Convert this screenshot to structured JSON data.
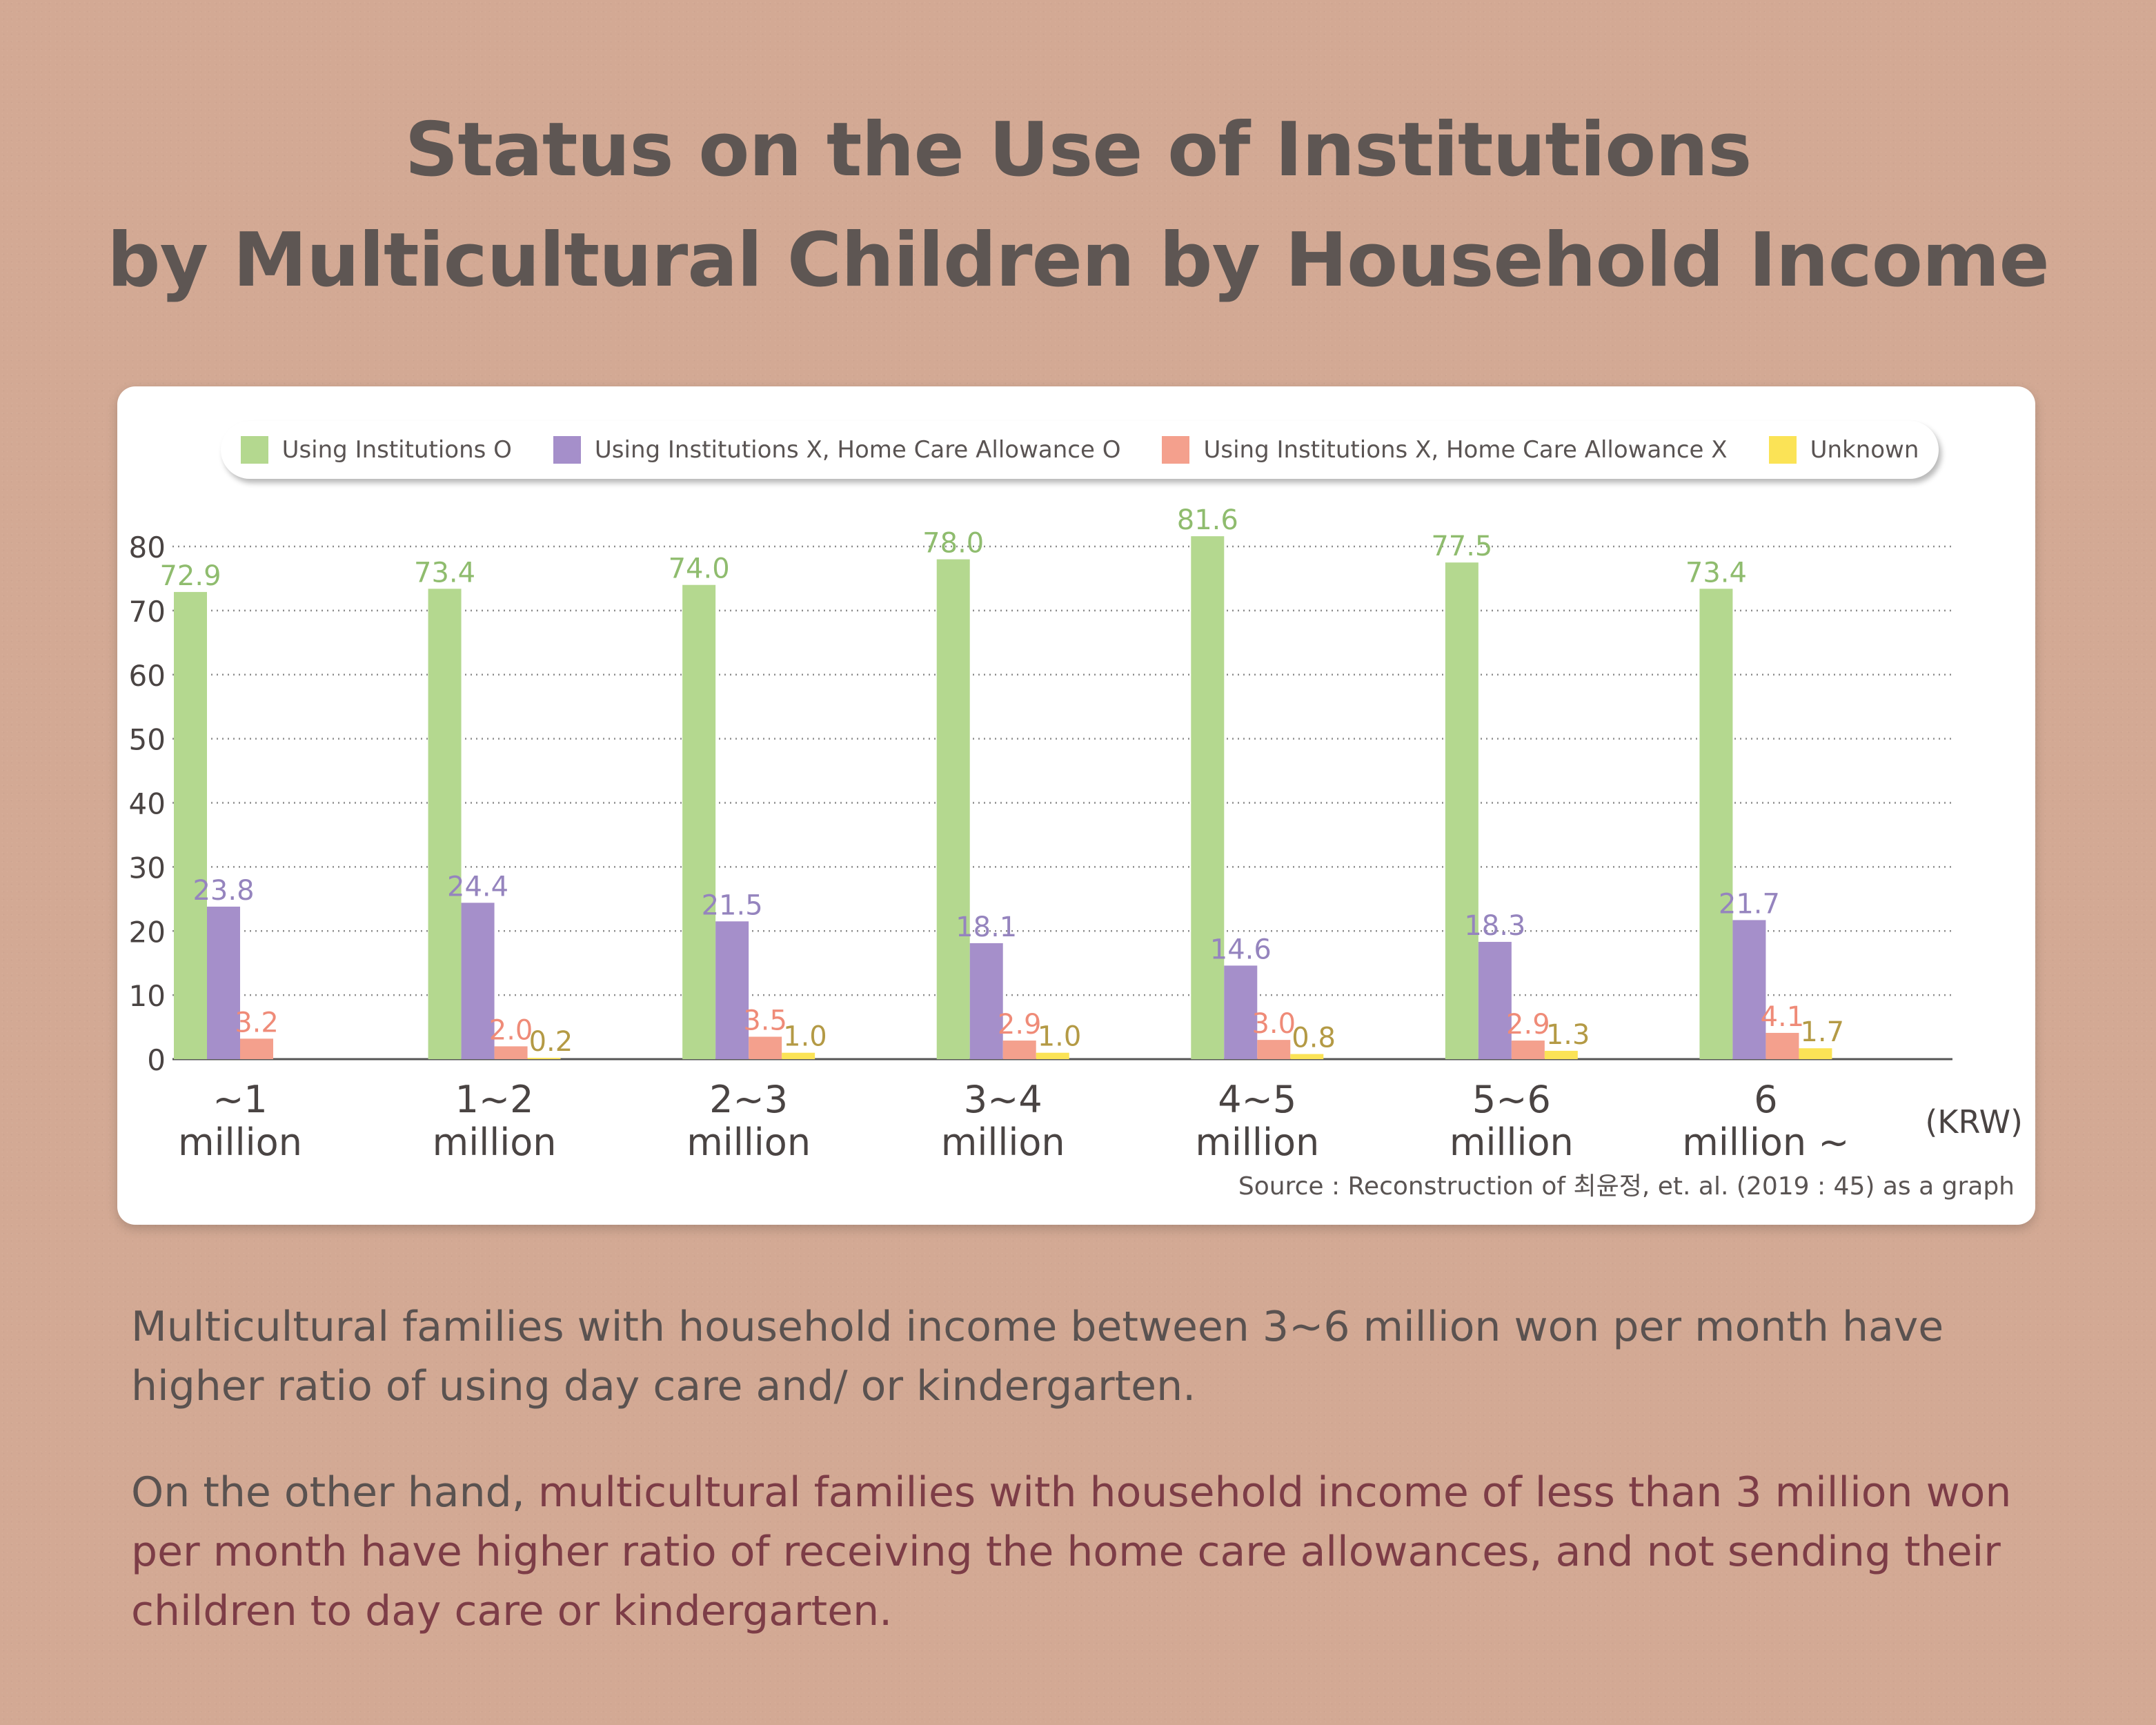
{
  "title": {
    "line1": "Status on the Use of Institutions",
    "line2": "by Multicultural Children by Household Income"
  },
  "colors": {
    "series0": "#b4d88f",
    "series1": "#a58fca",
    "series2": "#f4a08d",
    "series3": "#fbe356",
    "label0": "#8fbc6e",
    "label1": "#9584be",
    "label2": "#ef8b78",
    "label3": "#b49a45",
    "axis_text": "#4a4443"
  },
  "chart_data": {
    "type": "bar",
    "title": "Status on the Use of Institutions by Multicultural Children by Household Income",
    "unit_label": "(KRW)",
    "ylim": [
      0,
      80
    ],
    "yticks": [
      0,
      10,
      20,
      30,
      40,
      50,
      60,
      70,
      80
    ],
    "grid": true,
    "legend_position": "top",
    "categories": [
      [
        "~1",
        "million"
      ],
      [
        "1~2",
        "million"
      ],
      [
        "2~3",
        "million"
      ],
      [
        "3~4",
        "million"
      ],
      [
        "4~5",
        "million"
      ],
      [
        "5~6",
        "million"
      ],
      [
        "6",
        "million ~"
      ]
    ],
    "series": [
      {
        "name": "Using Institutions O",
        "values": [
          72.9,
          73.4,
          74.0,
          78.0,
          81.6,
          77.5,
          73.4
        ],
        "labels": [
          "72.9",
          "73.4",
          "74.0",
          "78.0",
          "81.6",
          "77.5",
          "73.4"
        ]
      },
      {
        "name": "Using Institutions X, Home Care Allowance O",
        "values": [
          23.8,
          24.4,
          21.5,
          18.1,
          14.6,
          18.3,
          21.7
        ],
        "labels": [
          "23.8",
          "24.4",
          "21.5",
          "18.1",
          "14.6",
          "18.3",
          "21.7"
        ]
      },
      {
        "name": "Using Institutions X, Home Care Allowance X",
        "values": [
          3.2,
          2.0,
          3.5,
          2.9,
          3.0,
          2.9,
          4.1
        ],
        "labels": [
          "3.2",
          "2.0",
          "3.5",
          "2.9",
          "3.0",
          "2.9",
          "4.1"
        ]
      },
      {
        "name": "Unknown",
        "values": [
          null,
          0.2,
          1.0,
          1.0,
          0.8,
          1.3,
          1.7
        ],
        "labels": [
          null,
          "0.2",
          "1.0",
          "1.0",
          "0.8",
          "1.3",
          "1.7"
        ]
      }
    ]
  },
  "source": "Source : Reconstruction of 최윤정, et. al. (2019 : 45) as a graph",
  "paragraph1": "Multicultural families with household income between 3~6 million won per month have higher ratio of using day care and/ or kindergarten.",
  "paragraph2": {
    "prefix": "On the other hand, ",
    "highlight": "multicultural families with household income of less than 3 million won per month have higher ratio of receiving the home care allowances, and not sending their children to day care or kindergarten."
  }
}
